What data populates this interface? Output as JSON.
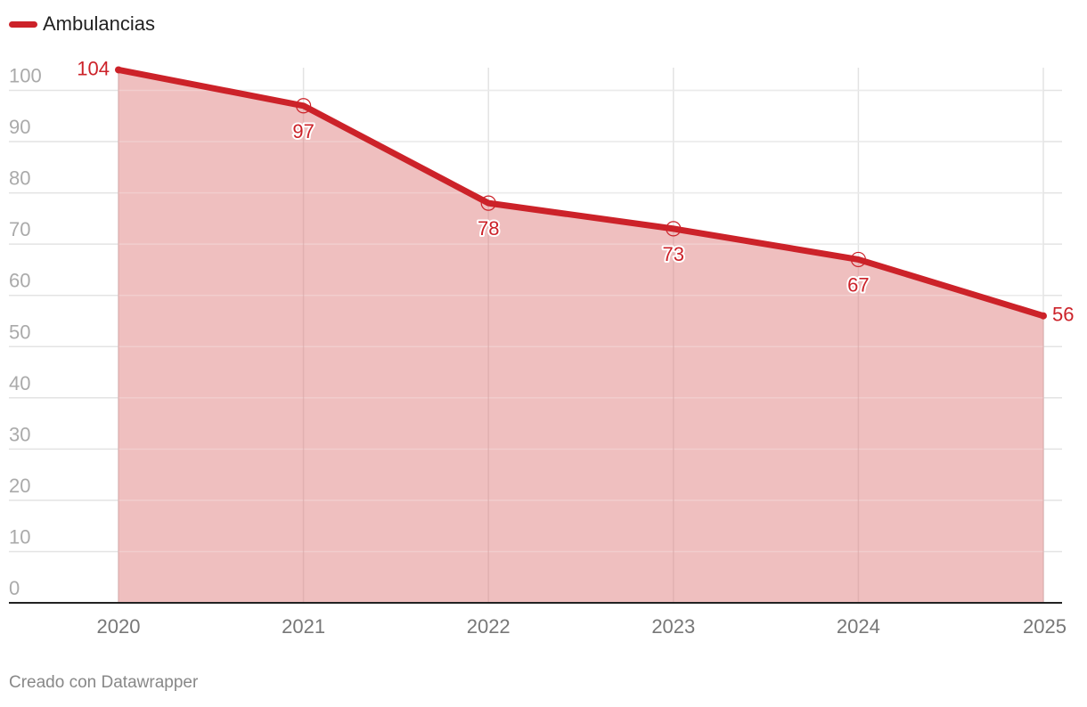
{
  "chart_data": {
    "type": "area",
    "x": [
      "2020",
      "2021",
      "2022",
      "2023",
      "2024",
      "2025"
    ],
    "series": [
      {
        "name": "Ambulancias",
        "values": [
          104,
          97,
          78,
          73,
          67,
          56
        ]
      }
    ],
    "yticks": [
      0,
      10,
      20,
      30,
      40,
      50,
      60,
      70,
      80,
      90,
      100
    ],
    "ylim": [
      0,
      104
    ],
    "grid": true,
    "legend": "top-left",
    "line_color": "#cc2229",
    "fill_color": "#eebaba"
  },
  "footer": "Creado con Datawrapper"
}
